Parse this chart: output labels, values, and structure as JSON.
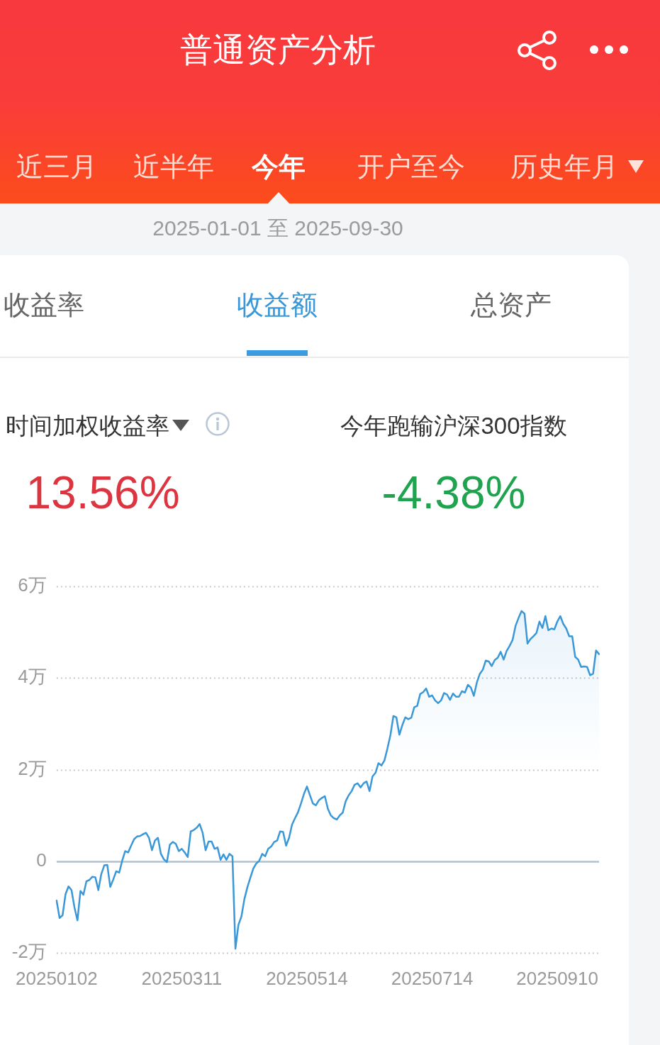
{
  "chart_data": {
    "type": "area",
    "title": "普通资产分析",
    "subtitle": "2025-01-01 至 2025-09-30",
    "annotations": [
      "近三月",
      "近半年",
      "今年",
      "开户至今",
      "历史年月",
      "收益率",
      "收益额",
      "总资产",
      "时间加权收益率",
      "13.56%",
      "今年跑输沪深300指数",
      "-4.38%"
    ],
    "categories": [
      "20250102",
      null,
      null,
      null,
      null,
      null,
      null,
      null,
      null,
      null,
      null,
      null,
      null,
      null,
      null,
      null,
      null,
      null,
      null,
      null,
      null,
      null,
      null,
      null,
      null,
      null,
      null,
      null,
      null,
      null,
      null,
      null,
      null,
      null,
      null,
      null,
      null,
      null,
      null,
      null,
      null,
      null,
      "20250311",
      null,
      null,
      null,
      null,
      null,
      null,
      null,
      null,
      null,
      null,
      null,
      null,
      null,
      null,
      null,
      null,
      null,
      null,
      null,
      null,
      null,
      null,
      null,
      null,
      null,
      null,
      null,
      null,
      null,
      null,
      null,
      null,
      null,
      null,
      null,
      null,
      null,
      null,
      null,
      null,
      null,
      "20250514",
      null,
      null,
      null,
      null,
      null,
      null,
      null,
      null,
      null,
      null,
      null,
      null,
      null,
      null,
      null,
      null,
      null,
      null,
      null,
      null,
      null,
      null,
      null,
      null,
      null,
      null,
      null,
      null,
      null,
      null,
      null,
      null,
      null,
      null,
      null,
      null,
      null,
      null,
      null,
      null,
      null,
      "20250714",
      null,
      null,
      null,
      null,
      null,
      null,
      null,
      null,
      null,
      null,
      null,
      null,
      null,
      null,
      null,
      null,
      null,
      null,
      null,
      null,
      null,
      null,
      null,
      null,
      null,
      null,
      null,
      null,
      null,
      null,
      null,
      null,
      null,
      null,
      null,
      null,
      null,
      null,
      null,
      null,
      null,
      "20250910",
      null,
      null,
      null,
      null,
      null,
      null,
      null,
      null,
      null,
      null,
      null,
      null,
      null,
      null
    ],
    "values": [
      -0.86,
      -1.24,
      -1.18,
      -0.72,
      -0.55,
      -0.63,
      -1.01,
      -1.29,
      -0.65,
      -0.73,
      -0.44,
      -0.41,
      -0.34,
      -0.35,
      -0.63,
      -0.28,
      -0.09,
      -0.08,
      -0.56,
      -0.4,
      -0.22,
      -0.25,
      0.01,
      0.22,
      0.19,
      0.34,
      0.48,
      0.54,
      0.55,
      0.59,
      0.62,
      0.51,
      0.24,
      0.45,
      0.51,
      0.16,
      0.04,
      -0.02,
      0.36,
      0.42,
      0.38,
      0.22,
      0.27,
      0.19,
      0.09,
      0.65,
      0.68,
      0.73,
      0.81,
      0.62,
      0.24,
      0.43,
      0.43,
      0.27,
      0.3,
      0.03,
      0.15,
      0.03,
      0.16,
      0.11,
      -1.91,
      -1.39,
      -1.21,
      -0.83,
      -0.57,
      -0.36,
      -0.16,
      -0.05,
      0.01,
      0.16,
      0.11,
      0.27,
      0.32,
      0.42,
      0.45,
      0.65,
      0.64,
      0.34,
      0.51,
      0.8,
      0.94,
      1.07,
      1.26,
      1.47,
      1.63,
      1.44,
      1.26,
      1.22,
      1.33,
      1.38,
      1.42,
      1.15,
      1,
      0.94,
      0.91,
      1,
      1.06,
      1.31,
      1.44,
      1.53,
      1.67,
      1.7,
      1.61,
      1.7,
      1.74,
      1.53,
      1.85,
      1.93,
      2.14,
      2.09,
      2.2,
      2.46,
      2.75,
      3.17,
      3.14,
      2.76,
      2.97,
      3.14,
      3.1,
      3.13,
      3.36,
      3.39,
      3.65,
      3.69,
      3.77,
      3.59,
      3.62,
      3.51,
      3.45,
      3.51,
      3.67,
      3.64,
      3.52,
      3.66,
      3.59,
      3.59,
      3.71,
      3.68,
      3.85,
      3.79,
      3.61,
      3.9,
      4.09,
      4.18,
      4.38,
      4.36,
      4.26,
      4.39,
      4.44,
      4.57,
      4.4,
      4.59,
      4.7,
      4.83,
      5.14,
      5.31,
      5.46,
      5.4,
      4.75,
      4.85,
      4.91,
      4.98,
      5.23,
      5.09,
      5.35,
      5.04,
      5.08,
      5.06,
      5.23,
      5.35,
      5.18,
      5.08,
      4.91,
      4.91,
      4.46,
      4.4,
      4.24,
      4.25,
      4.24,
      4.06,
      4.09,
      4.6,
      4.52
    ],
    "color": "#3a98d8",
    "ylim": [
      -2,
      6
    ],
    "yticks": [
      {
        "value": -2,
        "label": "-2万"
      },
      0,
      {
        "value": 2,
        "label": "2万"
      },
      {
        "value": 4,
        "label": "4万"
      },
      {
        "value": 6,
        "label": "6万"
      }
    ],
    "grid": "y",
    "marker": "none"
  }
}
